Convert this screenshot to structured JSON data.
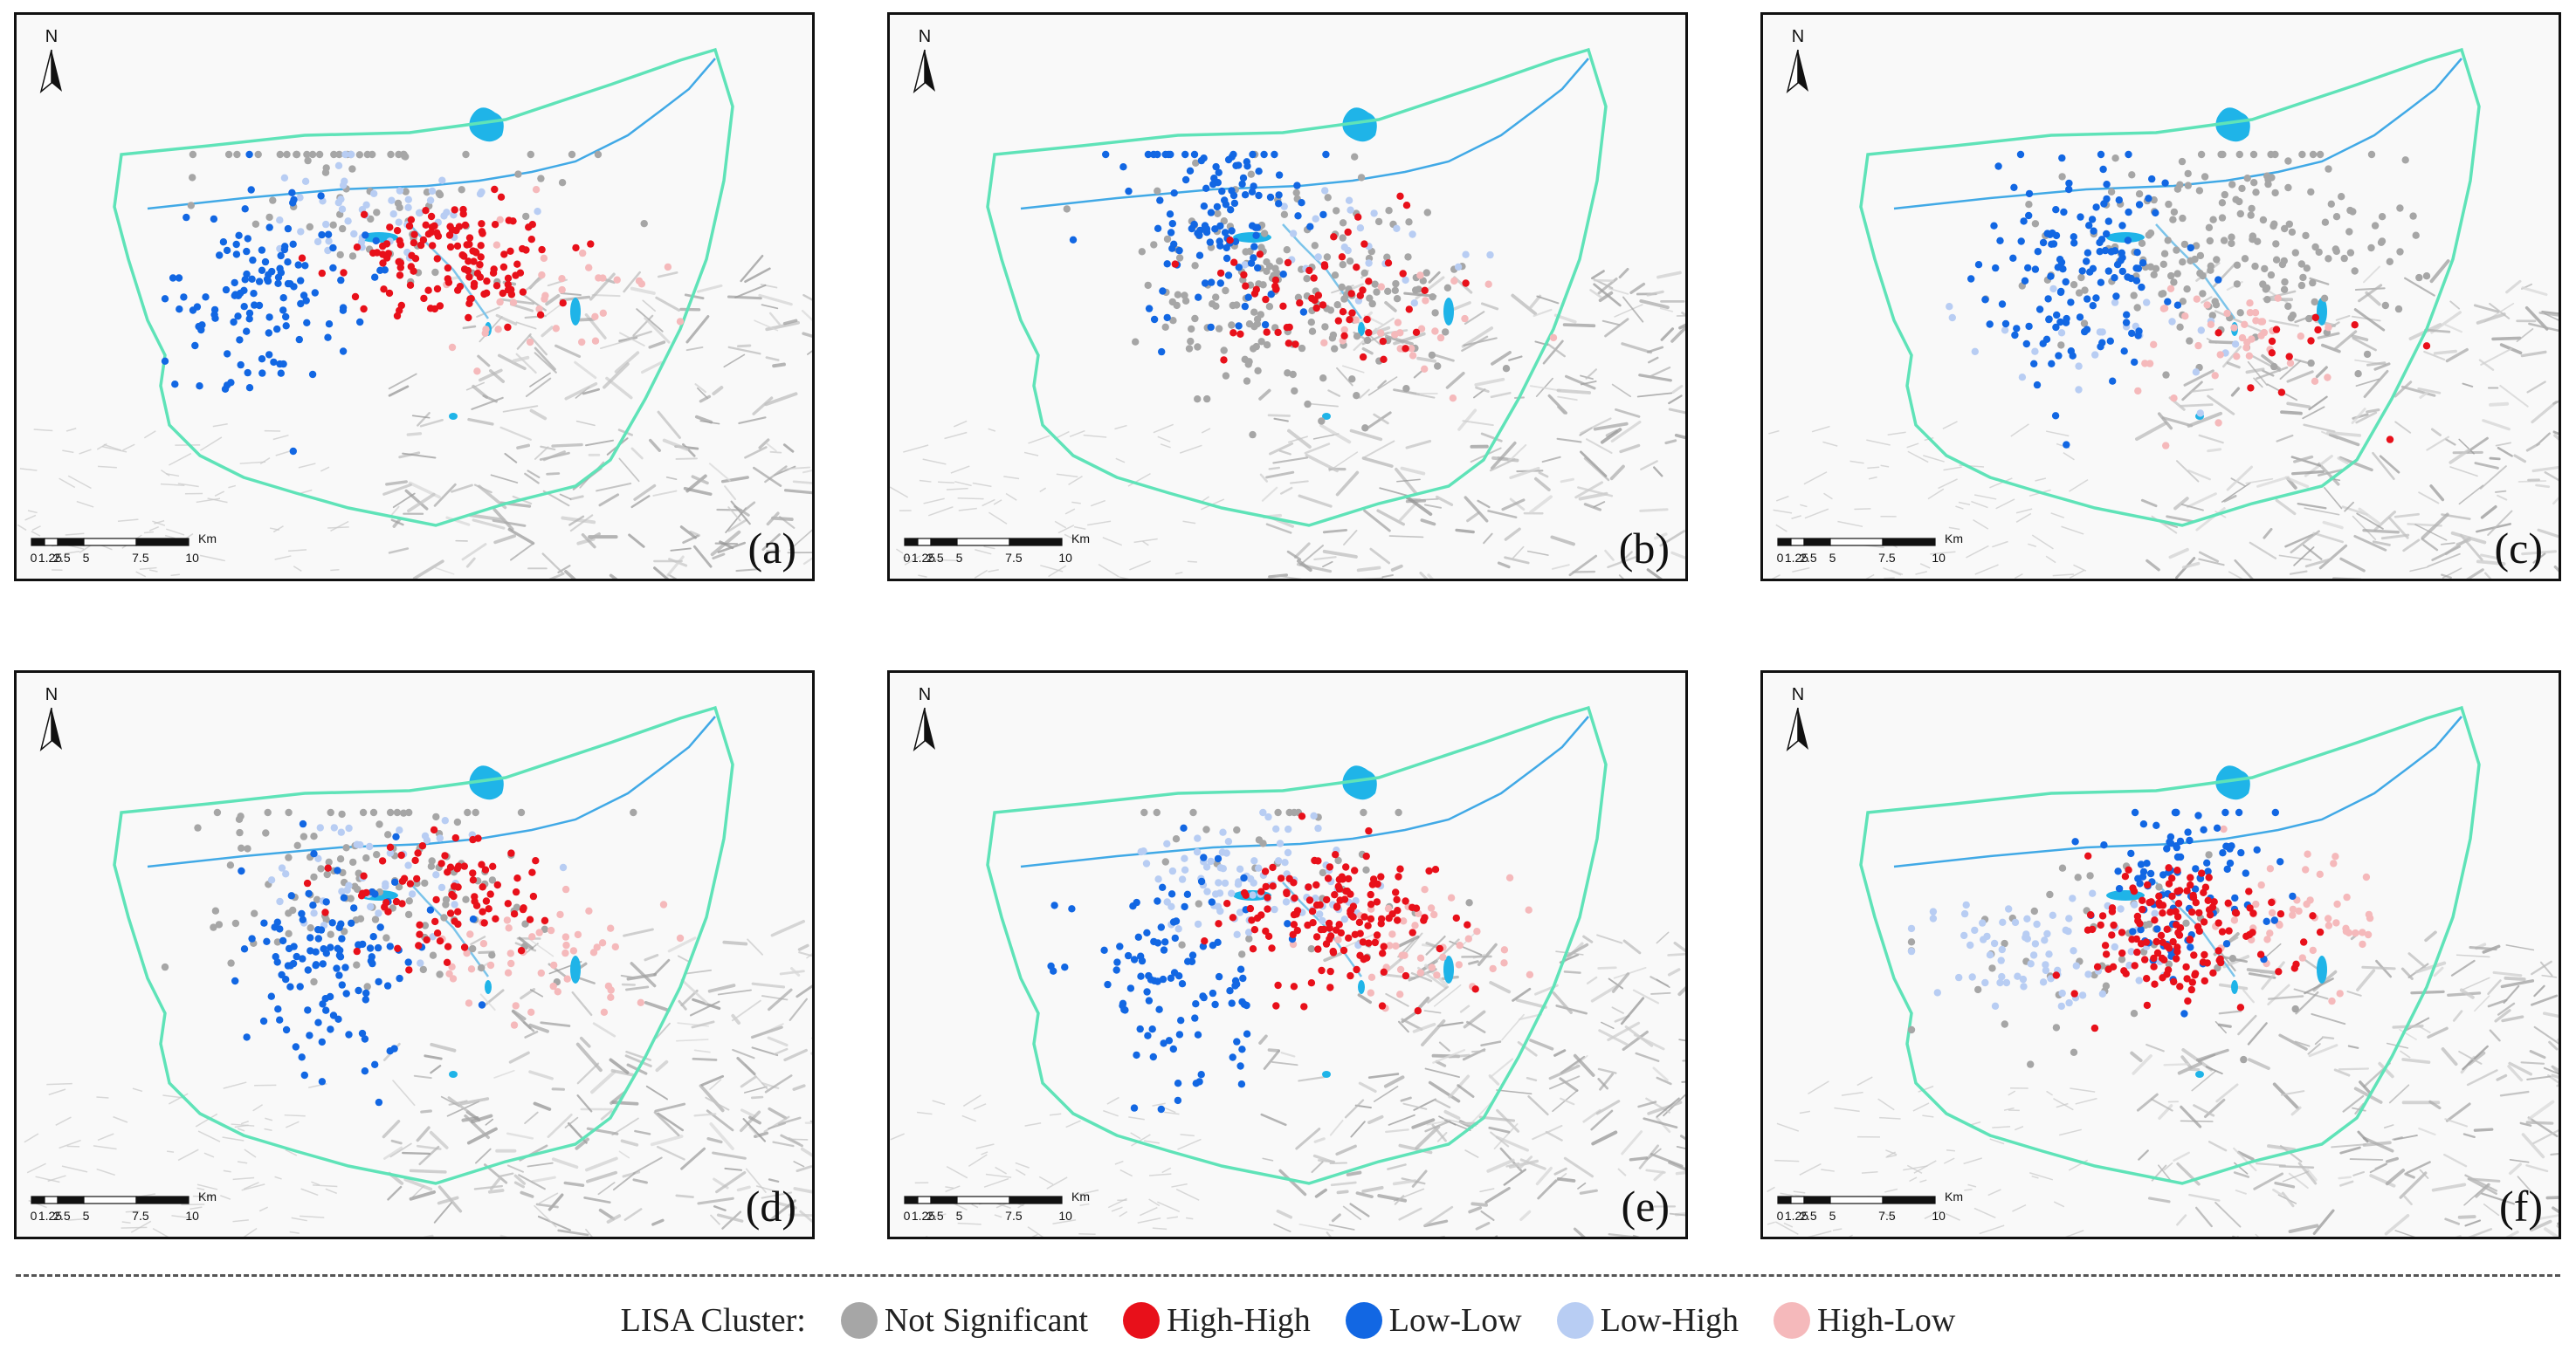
{
  "scalebar": {
    "unit": "Km",
    "ticks": [
      "0",
      "1.25",
      "2.5",
      "5",
      "7.5",
      "10"
    ]
  },
  "north_label": "N",
  "clusters": {
    "ns": {
      "label": "Not Significant",
      "color": "#a6a6a6"
    },
    "hh": {
      "label": "High-High",
      "color": "#e8101a"
    },
    "ll": {
      "label": "Low-Low",
      "color": "#1267e3"
    },
    "lh": {
      "label": "Low-High",
      "color": "#b8cdf3"
    },
    "hl": {
      "label": "High-Low",
      "color": "#f5b9bb"
    }
  },
  "legend": {
    "title": "LISA Cluster:",
    "items": [
      {
        "key": "ns",
        "label": "Not Significant",
        "color": "#a6a6a6"
      },
      {
        "key": "hh",
        "label": "High-High",
        "color": "#e8101a"
      },
      {
        "key": "ll",
        "label": "Low-Low",
        "color": "#1267e3"
      },
      {
        "key": "lh",
        "label": "Low-High",
        "color": "#b8cdf3"
      },
      {
        "key": "hl",
        "label": "High-Low",
        "color": "#f5b9bb"
      }
    ]
  },
  "panels": [
    {
      "label": "(a)",
      "weights": {
        "ns": 0.18,
        "hh": 0.32,
        "ll": 0.3,
        "lh": 0.12,
        "hl": 0.08
      }
    },
    {
      "label": "(b)",
      "weights": {
        "ns": 0.45,
        "hh": 0.15,
        "ll": 0.28,
        "lh": 0.06,
        "hl": 0.06
      }
    },
    {
      "label": "(c)",
      "weights": {
        "ns": 0.48,
        "hh": 0.03,
        "ll": 0.33,
        "lh": 0.06,
        "hl": 0.1
      }
    },
    {
      "label": "(d)",
      "weights": {
        "ns": 0.3,
        "hh": 0.2,
        "ll": 0.28,
        "lh": 0.1,
        "hl": 0.12
      }
    },
    {
      "label": "(e)",
      "weights": {
        "ns": 0.08,
        "hh": 0.35,
        "ll": 0.25,
        "lh": 0.22,
        "hl": 0.1
      }
    },
    {
      "label": "(f)",
      "weights": {
        "ns": 0.12,
        "hh": 0.35,
        "ll": 0.23,
        "lh": 0.18,
        "hl": 0.12
      }
    }
  ]
}
